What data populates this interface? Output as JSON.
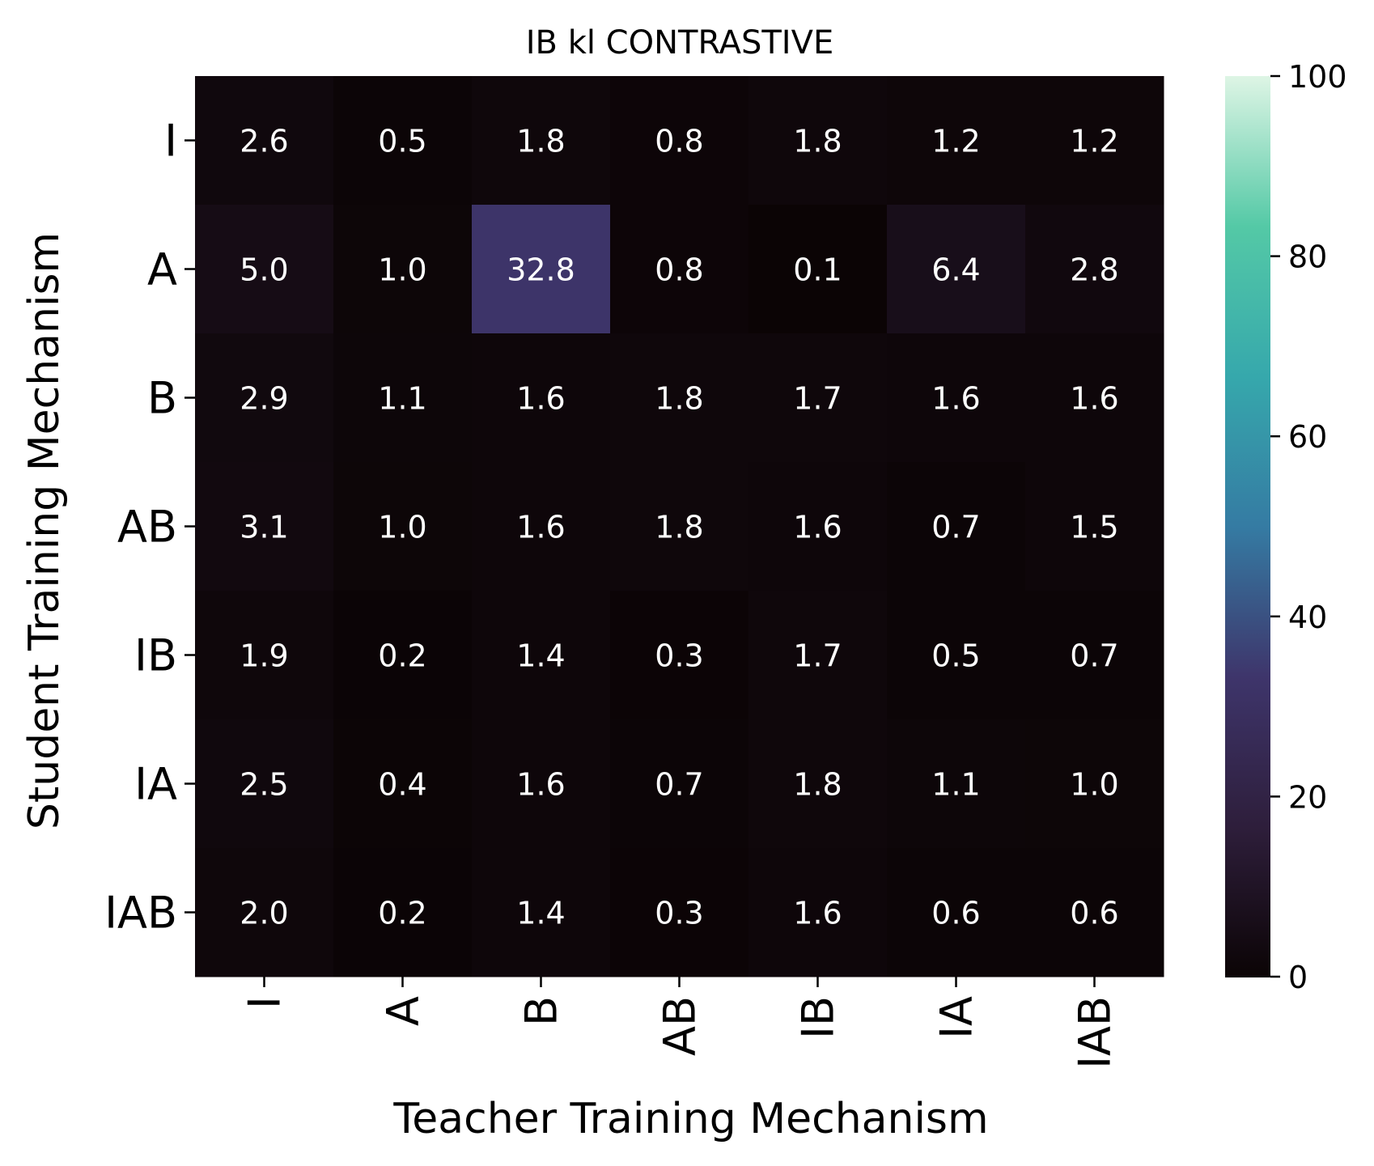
{
  "chart_data": {
    "type": "heatmap",
    "title": "IB kl CONTRASTIVE",
    "xlabel": "Teacher Training Mechanism",
    "ylabel": "Student Training Mechanism",
    "x_categories": [
      "I",
      "A",
      "B",
      "AB",
      "IB",
      "IA",
      "IAB"
    ],
    "y_categories": [
      "I",
      "A",
      "B",
      "AB",
      "IB",
      "IA",
      "IAB"
    ],
    "values": [
      [
        2.6,
        0.5,
        1.8,
        0.8,
        1.8,
        1.2,
        1.2
      ],
      [
        5.0,
        1.0,
        32.8,
        0.8,
        0.1,
        6.4,
        2.8
      ],
      [
        2.9,
        1.1,
        1.6,
        1.8,
        1.7,
        1.6,
        1.6
      ],
      [
        3.1,
        1.0,
        1.6,
        1.8,
        1.6,
        0.7,
        1.5
      ],
      [
        1.9,
        0.2,
        1.4,
        0.3,
        1.7,
        0.5,
        0.7
      ],
      [
        2.5,
        0.4,
        1.6,
        0.7,
        1.8,
        1.1,
        1.0
      ],
      [
        2.0,
        0.2,
        1.4,
        0.3,
        1.6,
        0.6,
        0.6
      ]
    ],
    "color_range": [
      0,
      100
    ],
    "colorbar_ticks": [
      0,
      20,
      40,
      60,
      80,
      100
    ],
    "colormap": "mako",
    "colormap_stops": [
      "#0b0405",
      "#2e1e3b",
      "#3e356b",
      "#357ba3",
      "#36a8ac",
      "#54c9a6",
      "#def5e5"
    ],
    "annotation_color": "#ffffff"
  }
}
